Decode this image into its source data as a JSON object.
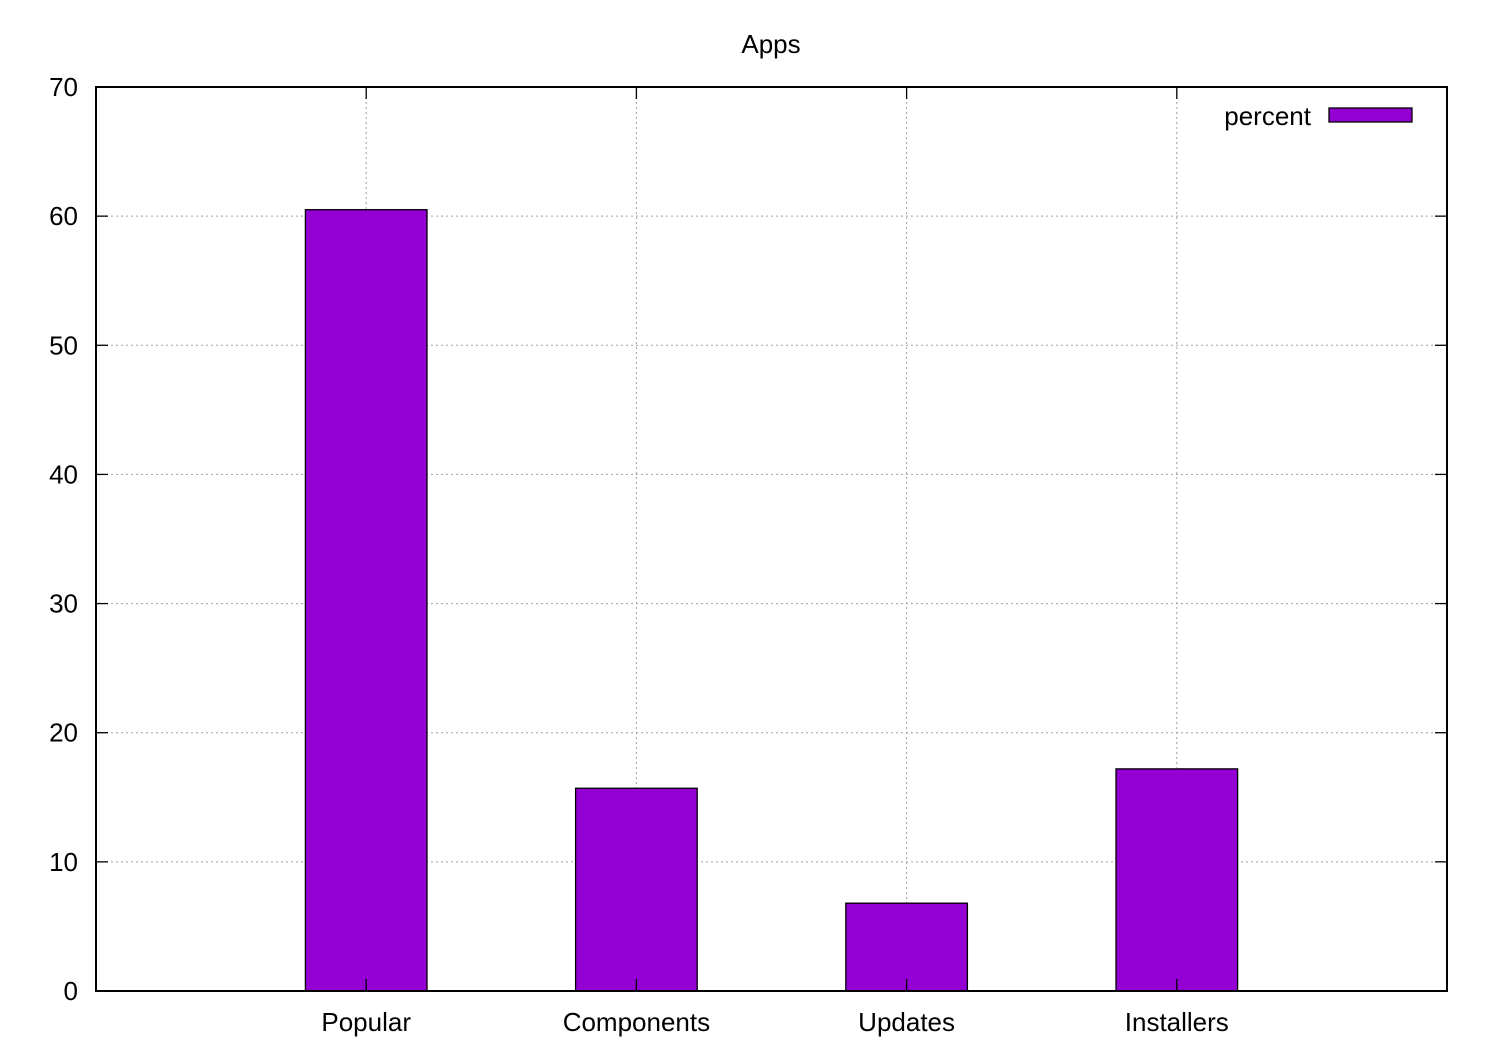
{
  "chart_data": {
    "type": "bar",
    "title": "Apps",
    "xlabel": "",
    "ylabel": "",
    "categories": [
      "Popular",
      "Components",
      "Updates",
      "Installers"
    ],
    "series": [
      {
        "name": "percent",
        "values": [
          60.5,
          15.7,
          6.8,
          17.2
        ],
        "color": "#9400d3"
      }
    ],
    "ylim": [
      0,
      70
    ],
    "yticks": [
      0,
      10,
      20,
      30,
      40,
      50,
      60,
      70
    ],
    "grid": true,
    "legend_position": "top-right"
  }
}
